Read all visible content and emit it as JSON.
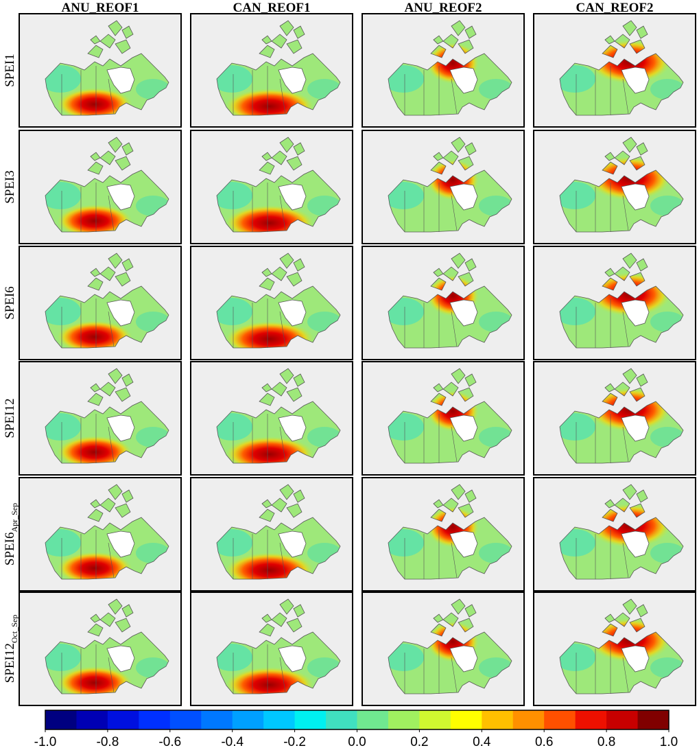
{
  "chart_data": {
    "type": "map_grid",
    "columns": [
      "ANU_REOF1",
      "CAN_REOF1",
      "ANU_REOF2",
      "CAN_REOF2"
    ],
    "rows": [
      {
        "label": "SPEI1"
      },
      {
        "label": "SPEI3"
      },
      {
        "label": "SPEI6"
      },
      {
        "label": "SPEI12"
      },
      {
        "label": "SPEI6",
        "sub": "Apr_Sep"
      },
      {
        "label": "SPEI12",
        "sub": "Oct_Sep"
      }
    ],
    "colorbar": {
      "lim": [
        -1,
        1
      ],
      "ticks": [
        {
          "value": -1,
          "label": "-1.0"
        },
        {
          "value": -0.8,
          "label": "-0.8"
        },
        {
          "value": -0.6,
          "label": "-0.6"
        },
        {
          "value": -0.4,
          "label": "-0.4"
        },
        {
          "value": -0.2,
          "label": "-0.2"
        },
        {
          "value": 0,
          "label": "0.0"
        },
        {
          "value": 0.2,
          "label": "0.2"
        },
        {
          "value": 0.4,
          "label": "0.4"
        },
        {
          "value": 0.6,
          "label": "0.6"
        },
        {
          "value": 0.8,
          "label": "0.8"
        },
        {
          "value": 1,
          "label": "1.0"
        }
      ],
      "colors": [
        "#000080",
        "#0000b4",
        "#0010e0",
        "#0030ff",
        "#0050ff",
        "#0078ff",
        "#00a0ff",
        "#00c8ff",
        "#00f0f0",
        "#40e0c0",
        "#70e890",
        "#a0f060",
        "#d0f830",
        "#ffff00",
        "#ffc000",
        "#ff9000",
        "#ff5000",
        "#ee1000",
        "#c80000",
        "#800000"
      ]
    }
  }
}
